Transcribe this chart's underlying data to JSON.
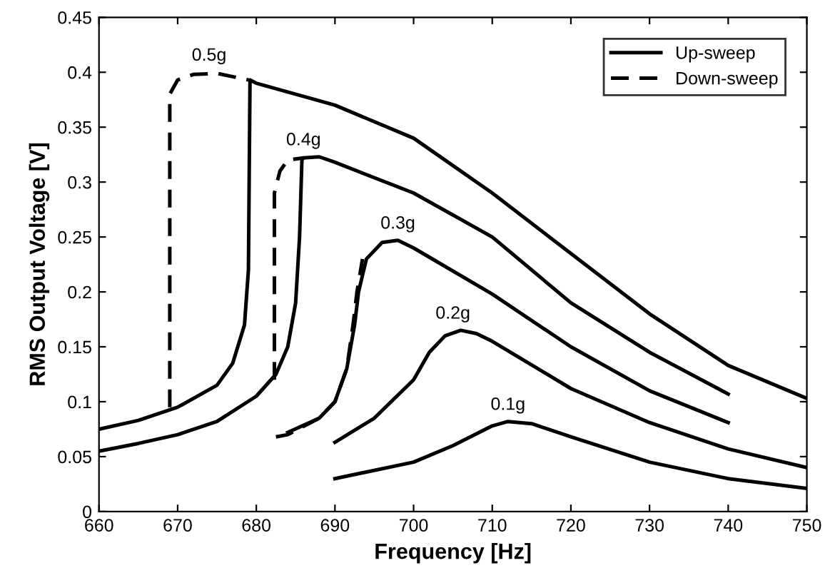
{
  "chart_data": {
    "type": "line",
    "xlabel": "Frequency [Hz]",
    "ylabel": "RMS Output Voltage [V]",
    "xlim": [
      660,
      750
    ],
    "xticks": [
      660,
      670,
      680,
      690,
      700,
      710,
      720,
      730,
      740,
      750
    ],
    "ylim": [
      0,
      0.45
    ],
    "yticks": [
      0,
      0.05,
      0.1,
      0.15,
      0.2,
      0.25,
      0.3,
      0.35,
      0.4,
      0.45
    ],
    "grid": false,
    "legend": "top right",
    "marker": "none",
    "series": [
      {
        "name": "Up-sweep",
        "color": "#000000",
        "line_style": "solid",
        "x": [
          660,
          665,
          670,
          675,
          677,
          678.5,
          679,
          679.2,
          680,
          690,
          700,
          710,
          720,
          730,
          740,
          750
        ],
        "values": [
          0.075,
          0.083,
          0.095,
          0.115,
          0.135,
          0.17,
          0.22,
          0.393,
          0.39,
          0.37,
          0.34,
          0.29,
          0.235,
          0.18,
          0.133,
          0.103
        ]
      },
      {
        "name": "Down-sweep",
        "color": "#000000",
        "line_style": "dashed",
        "x": [
          669,
          669,
          670,
          672,
          675,
          679
        ],
        "values": [
          0.095,
          0.38,
          0.393,
          0.398,
          0.399,
          0.393
        ]
      },
      {
        "color": "#000000",
        "line_style": "solid",
        "x": [
          660,
          665,
          670,
          675,
          680,
          682.5,
          684,
          685,
          685.5,
          685.8,
          686,
          688,
          690,
          700,
          710,
          720,
          730,
          740
        ],
        "values": [
          0.055,
          0.062,
          0.07,
          0.082,
          0.105,
          0.125,
          0.15,
          0.19,
          0.25,
          0.32,
          0.322,
          0.323,
          0.318,
          0.29,
          0.25,
          0.19,
          0.145,
          0.107
        ]
      },
      {
        "color": "#000000",
        "line_style": "dashed",
        "x": [
          682.3,
          682.3,
          683,
          684,
          686
        ],
        "values": [
          0.12,
          0.29,
          0.31,
          0.32,
          0.322
        ]
      },
      {
        "color": "#000000",
        "line_style": "solid",
        "x": [
          684,
          688,
          690,
          691.5,
          692.5,
          693,
          694,
          696,
          698,
          700,
          710,
          720,
          730,
          740
        ],
        "values": [
          0.072,
          0.085,
          0.1,
          0.13,
          0.17,
          0.2,
          0.23,
          0.245,
          0.247,
          0.24,
          0.198,
          0.15,
          0.11,
          0.081
        ]
      },
      {
        "color": "#000000",
        "line_style": "dashed",
        "x": [
          682.5,
          684,
          688,
          690,
          691.5,
          692.3,
          692.8,
          693.5
        ],
        "values": [
          0.068,
          0.07,
          0.085,
          0.1,
          0.13,
          0.17,
          0.2,
          0.23
        ]
      },
      {
        "color": "#000000",
        "line_style": "solid",
        "x": [
          690,
          695,
          700,
          702,
          704,
          706,
          708,
          710,
          720,
          730,
          740,
          750
        ],
        "values": [
          0.063,
          0.085,
          0.12,
          0.145,
          0.16,
          0.165,
          0.162,
          0.155,
          0.112,
          0.081,
          0.057,
          0.04
        ]
      },
      {
        "color": "#000000",
        "line_style": "solid",
        "x": [
          690,
          700,
          705,
          710,
          712,
          715,
          720,
          730,
          740,
          750
        ],
        "values": [
          0.03,
          0.045,
          0.06,
          0.078,
          0.082,
          0.08,
          0.068,
          0.045,
          0.03,
          0.021
        ]
      }
    ],
    "annotations": [
      {
        "text": "0.5g",
        "x": 674,
        "y": 0.4
      },
      {
        "text": "0.4g",
        "x": 686,
        "y": 0.323
      },
      {
        "text": "0.3g",
        "x": 698,
        "y": 0.247
      },
      {
        "text": "0.2g",
        "x": 705,
        "y": 0.165
      },
      {
        "text": "0.1g",
        "x": 712,
        "y": 0.082
      }
    ]
  }
}
